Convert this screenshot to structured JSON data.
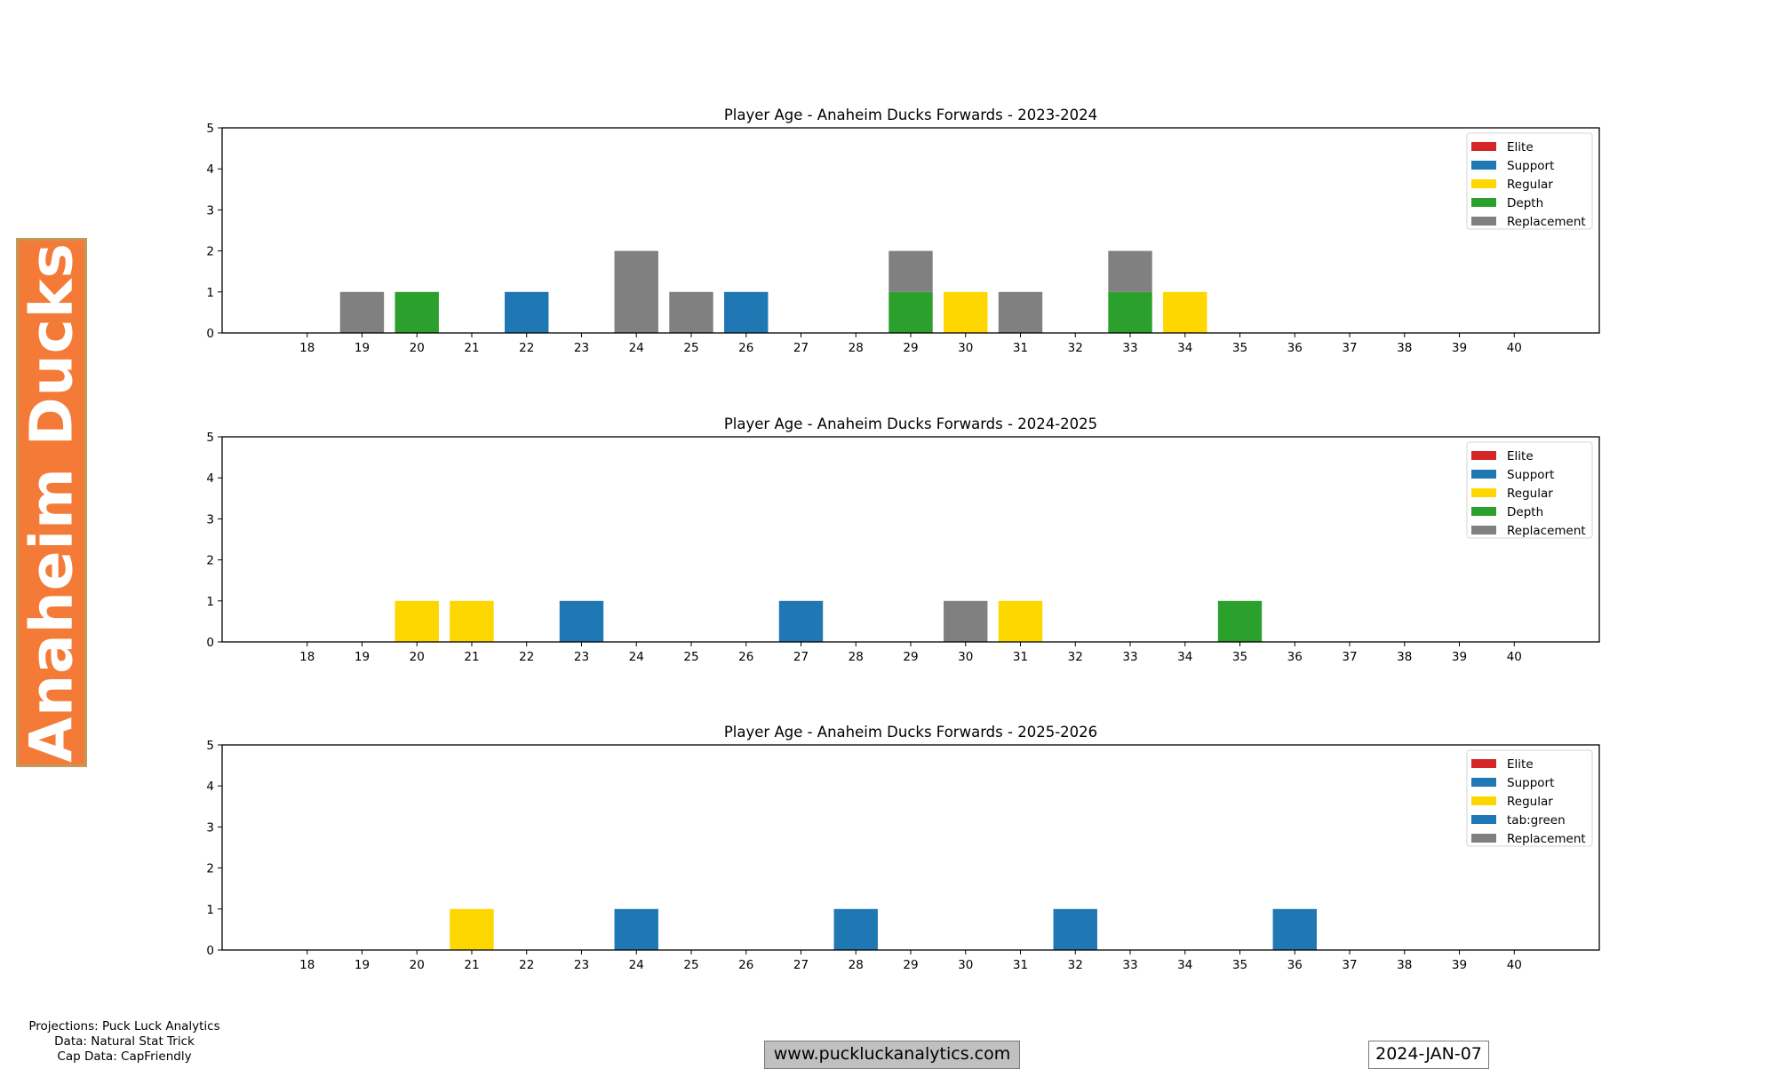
{
  "team_label": "Anaheim Ducks",
  "footer": {
    "credits": [
      "Projections: Puck Luck Analytics",
      "Data: Natural Stat Trick",
      "Cap Data: CapFriendly"
    ],
    "website": "www.puckluckanalytics.com",
    "date": "2024-JAN-07"
  },
  "colors": {
    "Elite": "#d62728",
    "Support": "#1f77b4",
    "Regular": "#FFD700",
    "Depth": "#2ca02c",
    "Replacement": "#808080",
    "team_orange": "#F47A38",
    "team_border": "#C09A5B"
  },
  "chart_data": [
    {
      "type": "bar",
      "stacked": true,
      "title": "Player Age - Anaheim Ducks Forwards - 2023-2024",
      "xlabel": "",
      "ylabel": "",
      "categories": [
        18,
        19,
        20,
        21,
        22,
        23,
        24,
        25,
        26,
        27,
        28,
        29,
        30,
        31,
        32,
        33,
        34,
        35,
        36,
        37,
        38,
        39,
        40
      ],
      "xlim": [
        16.45,
        41.55
      ],
      "ylim": [
        0,
        5
      ],
      "yticks": [
        0,
        1,
        2,
        3,
        4,
        5
      ],
      "legend_position": "upper-right",
      "legend": [
        {
          "label": "Elite",
          "color": "#d62728"
        },
        {
          "label": "Support",
          "color": "#1f77b4"
        },
        {
          "label": "Regular",
          "color": "#FFD700"
        },
        {
          "label": "Depth",
          "color": "#2ca02c"
        },
        {
          "label": "Replacement",
          "color": "#808080"
        }
      ],
      "series": [
        {
          "name": "Elite",
          "color": "#d62728",
          "values": [
            0,
            0,
            0,
            0,
            0,
            0,
            0,
            0,
            0,
            0,
            0,
            0,
            0,
            0,
            0,
            0,
            0,
            0,
            0,
            0,
            0,
            0,
            0
          ]
        },
        {
          "name": "Support",
          "color": "#1f77b4",
          "values": [
            0,
            0,
            0,
            0,
            1,
            0,
            0,
            0,
            1,
            0,
            0,
            0,
            0,
            0,
            0,
            0,
            0,
            0,
            0,
            0,
            0,
            0,
            0
          ]
        },
        {
          "name": "Regular",
          "color": "#FFD700",
          "values": [
            0,
            0,
            0,
            0,
            0,
            0,
            0,
            0,
            0,
            0,
            0,
            0,
            1,
            0,
            0,
            0,
            1,
            0,
            0,
            0,
            0,
            0,
            0
          ]
        },
        {
          "name": "Depth",
          "color": "#2ca02c",
          "values": [
            0,
            0,
            1,
            0,
            0,
            0,
            0,
            0,
            0,
            0,
            0,
            1,
            0,
            0,
            0,
            1,
            0,
            0,
            0,
            0,
            0,
            0,
            0
          ]
        },
        {
          "name": "Replacement",
          "color": "#808080",
          "values": [
            0,
            1,
            0,
            0,
            0,
            0,
            2,
            1,
            0,
            0,
            0,
            1,
            0,
            1,
            0,
            1,
            0,
            0,
            0,
            0,
            0,
            0,
            0
          ]
        }
      ]
    },
    {
      "type": "bar",
      "stacked": true,
      "title": "Player Age - Anaheim Ducks Forwards - 2024-2025",
      "xlabel": "",
      "ylabel": "",
      "categories": [
        18,
        19,
        20,
        21,
        22,
        23,
        24,
        25,
        26,
        27,
        28,
        29,
        30,
        31,
        32,
        33,
        34,
        35,
        36,
        37,
        38,
        39,
        40
      ],
      "xlim": [
        16.45,
        41.55
      ],
      "ylim": [
        0,
        5
      ],
      "yticks": [
        0,
        1,
        2,
        3,
        4,
        5
      ],
      "legend_position": "upper-right",
      "legend": [
        {
          "label": "Elite",
          "color": "#d62728"
        },
        {
          "label": "Support",
          "color": "#1f77b4"
        },
        {
          "label": "Regular",
          "color": "#FFD700"
        },
        {
          "label": "Depth",
          "color": "#2ca02c"
        },
        {
          "label": "Replacement",
          "color": "#808080"
        }
      ],
      "series": [
        {
          "name": "Elite",
          "color": "#d62728",
          "values": [
            0,
            0,
            0,
            0,
            0,
            0,
            0,
            0,
            0,
            0,
            0,
            0,
            0,
            0,
            0,
            0,
            0,
            0,
            0,
            0,
            0,
            0,
            0
          ]
        },
        {
          "name": "Support",
          "color": "#1f77b4",
          "values": [
            0,
            0,
            0,
            0,
            0,
            1,
            0,
            0,
            0,
            1,
            0,
            0,
            0,
            0,
            0,
            0,
            0,
            0,
            0,
            0,
            0,
            0,
            0
          ]
        },
        {
          "name": "Regular",
          "color": "#FFD700",
          "values": [
            0,
            0,
            1,
            1,
            0,
            0,
            0,
            0,
            0,
            0,
            0,
            0,
            0,
            1,
            0,
            0,
            0,
            0,
            0,
            0,
            0,
            0,
            0
          ]
        },
        {
          "name": "Depth",
          "color": "#2ca02c",
          "values": [
            0,
            0,
            0,
            0,
            0,
            0,
            0,
            0,
            0,
            0,
            0,
            0,
            0,
            0,
            0,
            0,
            0,
            1,
            0,
            0,
            0,
            0,
            0
          ]
        },
        {
          "name": "Replacement",
          "color": "#808080",
          "values": [
            0,
            0,
            0,
            0,
            0,
            0,
            0,
            0,
            0,
            0,
            0,
            0,
            1,
            0,
            0,
            0,
            0,
            0,
            0,
            0,
            0,
            0,
            0
          ]
        }
      ]
    },
    {
      "type": "bar",
      "stacked": true,
      "title": "Player Age - Anaheim Ducks Forwards - 2025-2026",
      "xlabel": "",
      "ylabel": "",
      "categories": [
        18,
        19,
        20,
        21,
        22,
        23,
        24,
        25,
        26,
        27,
        28,
        29,
        30,
        31,
        32,
        33,
        34,
        35,
        36,
        37,
        38,
        39,
        40
      ],
      "xlim": [
        16.45,
        41.55
      ],
      "ylim": [
        0,
        5
      ],
      "yticks": [
        0,
        1,
        2,
        3,
        4,
        5
      ],
      "legend_position": "upper-right",
      "legend": [
        {
          "label": "Elite",
          "color": "#d62728"
        },
        {
          "label": "Support",
          "color": "#1f77b4"
        },
        {
          "label": "Regular",
          "color": "#FFD700"
        },
        {
          "label": "tab:green",
          "color": "#1f77b4"
        },
        {
          "label": "Replacement",
          "color": "#808080"
        }
      ],
      "series": [
        {
          "name": "Elite",
          "color": "#d62728",
          "values": [
            0,
            0,
            0,
            0,
            0,
            0,
            0,
            0,
            0,
            0,
            0,
            0,
            0,
            0,
            0,
            0,
            0,
            0,
            0,
            0,
            0,
            0,
            0
          ]
        },
        {
          "name": "Support",
          "color": "#1f77b4",
          "values": [
            0,
            0,
            0,
            0,
            0,
            0,
            1,
            0,
            0,
            0,
            1,
            0,
            0,
            0,
            1,
            0,
            0,
            0,
            1,
            0,
            0,
            0,
            0
          ]
        },
        {
          "name": "Regular",
          "color": "#FFD700",
          "values": [
            0,
            0,
            0,
            1,
            0,
            0,
            0,
            0,
            0,
            0,
            0,
            0,
            0,
            0,
            0,
            0,
            0,
            0,
            0,
            0,
            0,
            0,
            0
          ]
        },
        {
          "name": "tab:green",
          "color": "#1f77b4",
          "values": [
            0,
            0,
            0,
            0,
            0,
            0,
            0,
            0,
            0,
            0,
            0,
            0,
            0,
            0,
            0,
            0,
            0,
            0,
            0,
            0,
            0,
            0,
            0
          ]
        },
        {
          "name": "Replacement",
          "color": "#808080",
          "values": [
            0,
            0,
            0,
            0,
            0,
            0,
            0,
            0,
            0,
            0,
            0,
            0,
            0,
            0,
            0,
            0,
            0,
            0,
            0,
            0,
            0,
            0,
            0
          ]
        }
      ]
    }
  ]
}
